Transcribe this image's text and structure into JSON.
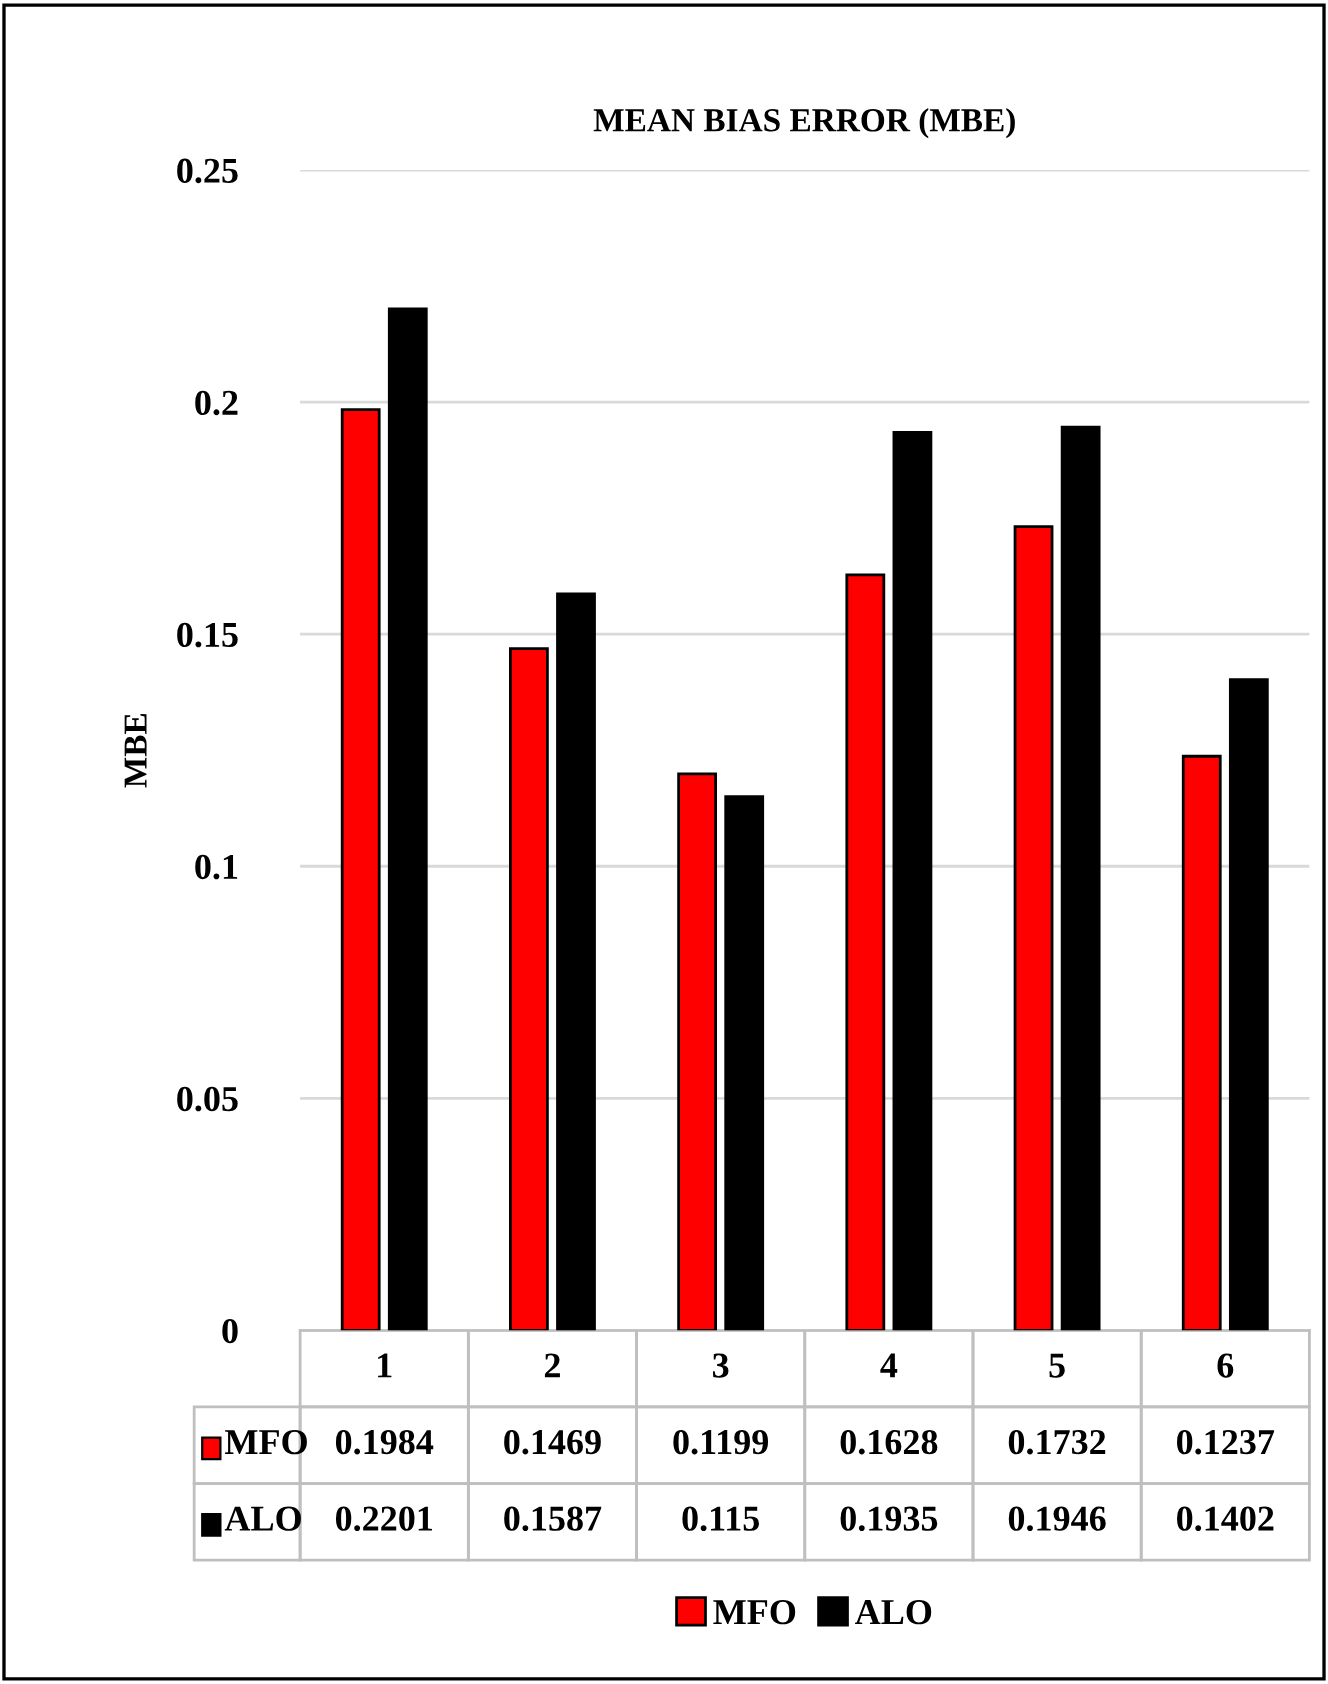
{
  "chart_data": {
    "type": "bar",
    "title": "MEAN BIAS ERROR (MBE)",
    "ylabel": "MBE",
    "categories": [
      "1",
      "2",
      "3",
      "4",
      "5",
      "6"
    ],
    "series": [
      {
        "name": "MFO",
        "color": "#ff0000",
        "values": [
          0.1984,
          0.1469,
          0.1199,
          0.1628,
          0.1732,
          0.1237
        ]
      },
      {
        "name": "ALO",
        "color": "#000000",
        "values": [
          0.2201,
          0.1587,
          0.115,
          0.1935,
          0.1946,
          0.1402
        ]
      }
    ],
    "ylim": [
      0,
      0.25
    ],
    "yticks": [
      0,
      0.05,
      0.1,
      0.15,
      0.2,
      0.25
    ],
    "grid": "y",
    "legend": "bottom",
    "data_labels": true
  }
}
